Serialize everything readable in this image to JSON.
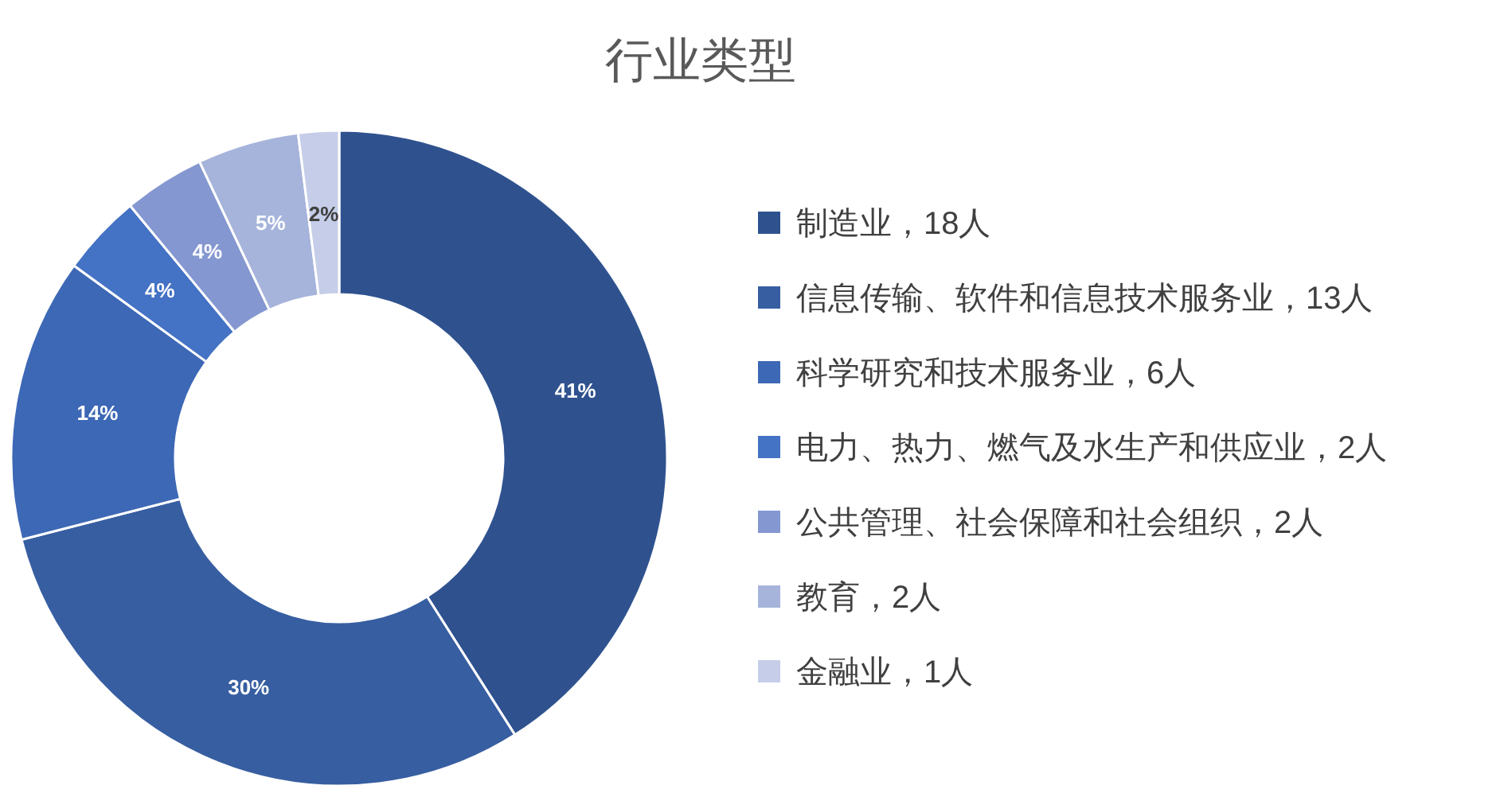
{
  "chart_data": {
    "type": "donut",
    "title": "行业类型",
    "categories": [
      "制造业，18人",
      "信息传输、软件和信息技术服务业，13人",
      "科学研究和技术服务业，6人",
      "电力、热力、燃气及水生产和供应业，2人",
      "公共管理、社会保障和社会组织，2人",
      "教育，2人",
      "金融业，1人"
    ],
    "values": [
      41,
      30,
      14,
      4,
      4,
      5,
      2
    ],
    "value_labels": [
      "41%",
      "30%",
      "14%",
      "4%",
      "4%",
      "5%",
      "2%"
    ],
    "colors": [
      "#2f528f",
      "#375ea1",
      "#3d68b5",
      "#4472c4",
      "#8497d0",
      "#a6b4db",
      "#c5cde8"
    ],
    "legend": "right"
  }
}
